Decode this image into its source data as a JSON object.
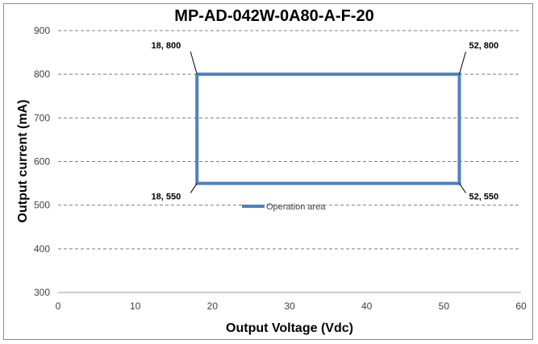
{
  "chart_data": {
    "type": "line",
    "title": "MP-AD-042W-0A80-A-F-20",
    "xlabel": "Output Voltage (Vdc)",
    "ylabel": "Output current (mA)",
    "xlim": [
      0,
      60
    ],
    "ylim": [
      300,
      900
    ],
    "xticks": [
      0,
      10,
      20,
      30,
      40,
      50,
      60
    ],
    "yticks": [
      300,
      400,
      500,
      600,
      700,
      800,
      900
    ],
    "grid": "horizontal-dashed",
    "legend_position": "center",
    "series": [
      {
        "name": "Operation area",
        "color": "#4f81bd",
        "x": [
          18,
          52,
          52,
          18,
          18
        ],
        "y": [
          800,
          800,
          550,
          550,
          800
        ]
      }
    ],
    "annotations": [
      {
        "text": "18, 800",
        "x": 18,
        "y": 800,
        "anchor": "top-left"
      },
      {
        "text": "52, 800",
        "x": 52,
        "y": 800,
        "anchor": "top-right"
      },
      {
        "text": "18, 550",
        "x": 18,
        "y": 550,
        "anchor": "bottom-left"
      },
      {
        "text": "52, 550",
        "x": 52,
        "y": 550,
        "anchor": "bottom-right"
      }
    ]
  }
}
